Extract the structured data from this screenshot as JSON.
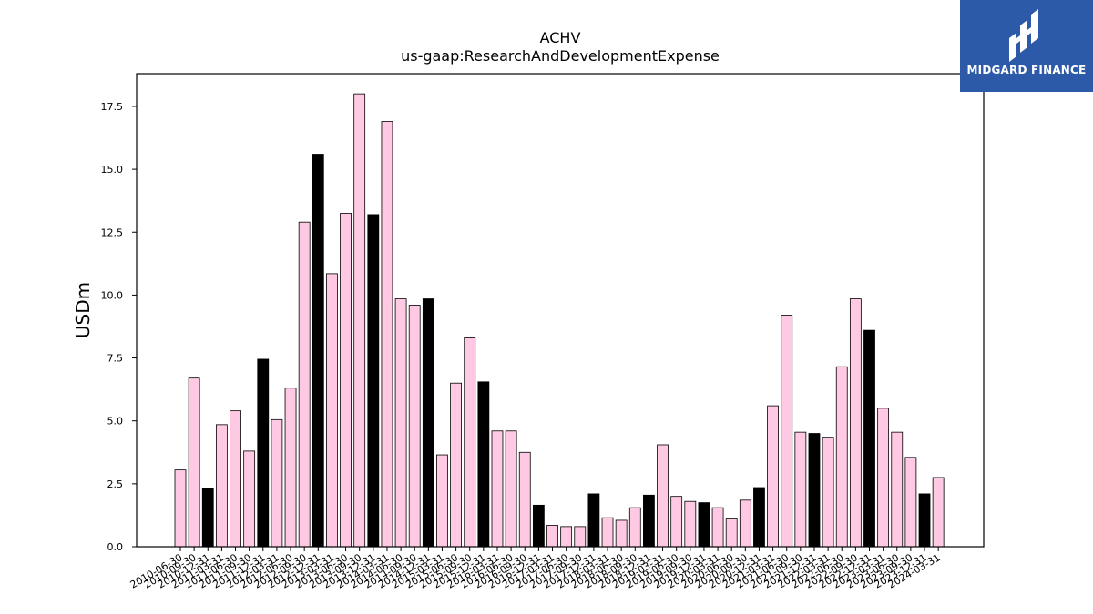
{
  "chart_data": {
    "type": "bar",
    "title": "ACHV",
    "subtitle": "us-gaap:ResearchAndDevelopmentExpense",
    "xlabel": "",
    "ylabel": "USDm",
    "ylim": [
      0,
      18.8
    ],
    "yticks": [
      "0.0",
      "2.5",
      "5.0",
      "7.5",
      "10.0",
      "12.5",
      "15.0",
      "17.5"
    ],
    "grid": false,
    "colors": {
      "quarter": "#ffc9e3",
      "year_end": "#000000",
      "edge": "#000000"
    },
    "categories": [
      "2010-06-30",
      "2010-09-30",
      "2010-12-31",
      "2011-03-31",
      "2011-06-30",
      "2011-09-30",
      "2011-12-31",
      "2012-03-31",
      "2012-06-30",
      "2012-09-30",
      "2012-12-31",
      "2013-03-31",
      "2013-06-30",
      "2013-09-30",
      "2013-12-31",
      "2014-03-31",
      "2014-06-30",
      "2014-09-30",
      "2014-12-31",
      "2015-03-31",
      "2015-06-30",
      "2015-09-30",
      "2015-12-31",
      "2016-03-31",
      "2016-06-30",
      "2016-09-30",
      "2016-12-31",
      "2017-03-31",
      "2017-06-30",
      "2017-09-30",
      "2017-12-31",
      "2018-03-31",
      "2018-06-30",
      "2018-09-30",
      "2018-12-31",
      "2019-03-31",
      "2019-06-30",
      "2019-09-30",
      "2019-12-31",
      "2020-03-31",
      "2020-06-30",
      "2020-09-30",
      "2020-12-31",
      "2021-03-31",
      "2021-06-30",
      "2021-09-30",
      "2021-12-31",
      "2022-03-31",
      "2022-06-30",
      "2022-09-30",
      "2022-12-31",
      "2023-03-31",
      "2023-06-30",
      "2023-09-30",
      "2023-12-31",
      "2024-03-31"
    ],
    "values": [
      3.05,
      6.7,
      2.3,
      4.85,
      5.4,
      3.8,
      7.45,
      5.05,
      6.3,
      12.9,
      15.6,
      10.85,
      13.25,
      18.0,
      13.2,
      16.9,
      9.85,
      9.6,
      9.85,
      3.65,
      6.5,
      8.3,
      6.55,
      4.6,
      4.6,
      3.75,
      1.65,
      0.85,
      0.8,
      0.8,
      2.1,
      1.15,
      1.05,
      1.55,
      2.05,
      4.05,
      2.0,
      1.8,
      1.75,
      1.55,
      1.1,
      1.85,
      2.35,
      5.6,
      9.2,
      4.55,
      4.5,
      4.35,
      7.15,
      9.85,
      8.6,
      5.5,
      4.55,
      3.55,
      2.1,
      2.75
    ],
    "year_end": [
      false,
      false,
      true,
      false,
      false,
      false,
      true,
      false,
      false,
      false,
      true,
      false,
      false,
      false,
      true,
      false,
      false,
      false,
      true,
      false,
      false,
      false,
      true,
      false,
      false,
      false,
      true,
      false,
      false,
      false,
      true,
      false,
      false,
      false,
      true,
      false,
      false,
      false,
      true,
      false,
      false,
      false,
      true,
      false,
      false,
      false,
      true,
      false,
      false,
      false,
      true,
      false,
      false,
      false,
      true,
      false
    ]
  },
  "logo": {
    "text": "MIDGARD FINANCE"
  }
}
